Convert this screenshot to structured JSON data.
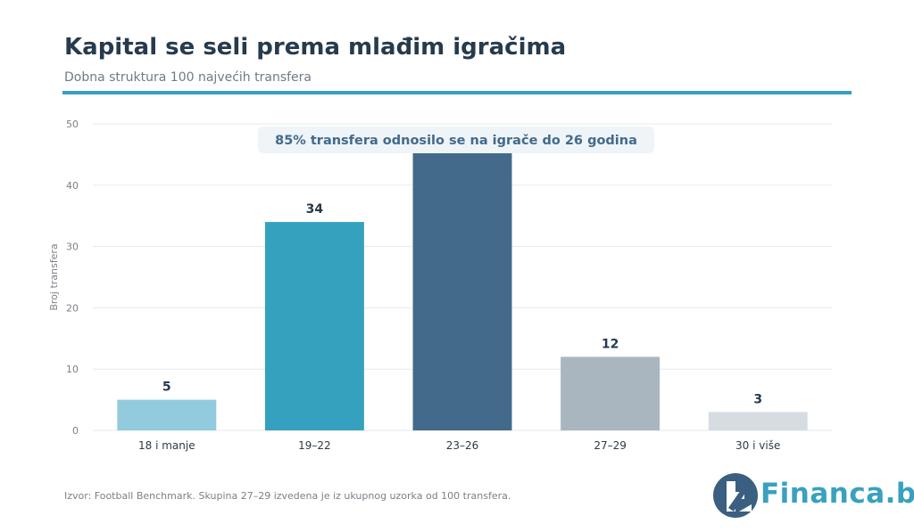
{
  "title": "Kapital se seli prema mlađim igračima",
  "subtitle": "Dobna struktura 100 najvećih transfera",
  "accent_color": "#36a0bf",
  "source": "Izvor: Football Benchmark. Skupina 27–29 izvedena je iz ukupnog uzorka od 100 transfera.",
  "logo_text": "Financa.ba",
  "chart_data": {
    "type": "bar",
    "categories": [
      "18 i manje",
      "19–22",
      "23–26",
      "27–29",
      "30 i više"
    ],
    "values": [
      5,
      34,
      46,
      12,
      3
    ],
    "value_labels": [
      "5",
      "34",
      "",
      "12",
      "3"
    ],
    "bar_colors": [
      "#92cbdd",
      "#36a0bf",
      "#436a8b",
      "#a9b6bf",
      "#d5dce2"
    ],
    "ylabel": "Broj transfera",
    "xlabel": "",
    "ylim": [
      0,
      50
    ],
    "yticks": [
      0,
      10,
      20,
      30,
      40,
      50
    ],
    "grid": true,
    "annotation": "85% transfera odnosilo se na igrače do 26 godina"
  }
}
